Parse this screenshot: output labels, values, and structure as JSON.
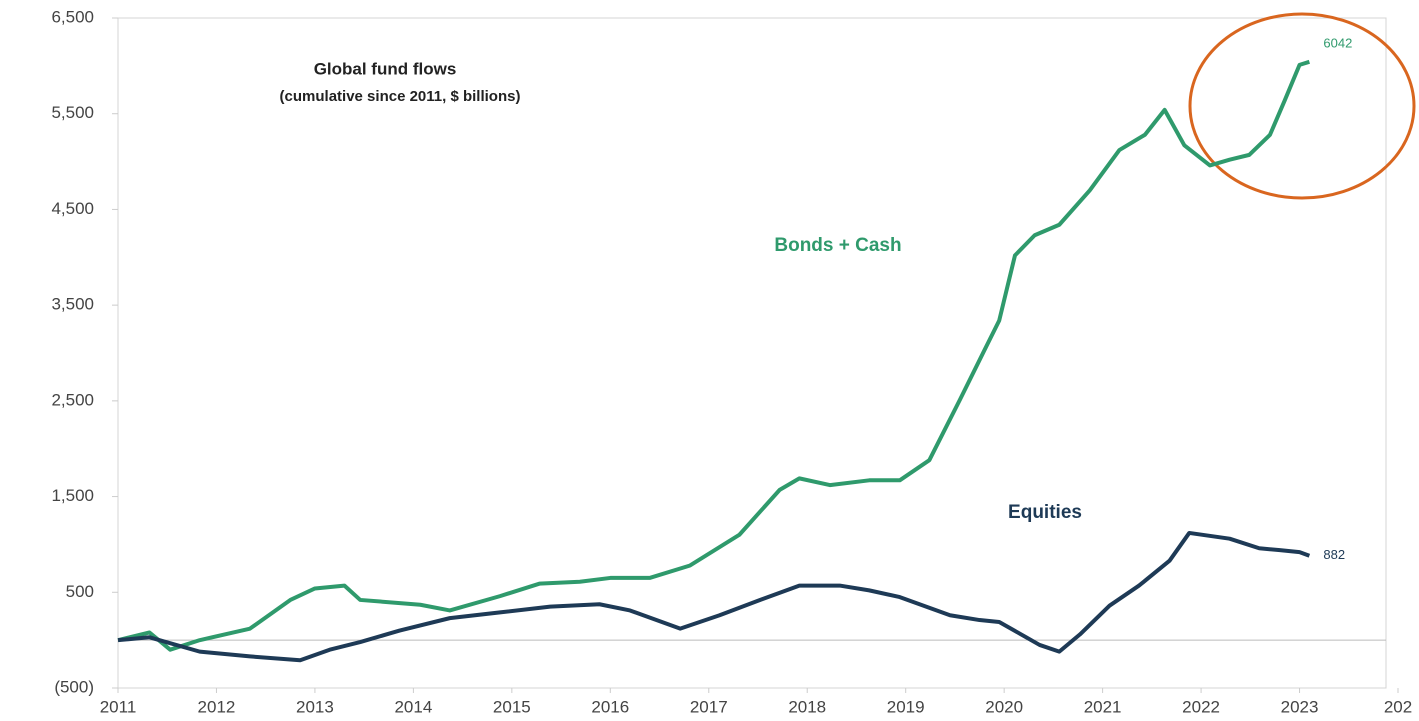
{
  "chart_data": {
    "type": "line",
    "title": "Global fund flows",
    "subtitle": "(cumulative since 2011, $ billions)",
    "xlim": [
      2011,
      2024
    ],
    "xticks": [
      2011,
      2012,
      2013,
      2014,
      2015,
      2016,
      2017,
      2018,
      2019,
      2020,
      2021,
      2022,
      2023,
      {
        "value": 2024,
        "label": "202"
      }
    ],
    "ylim": [
      -500,
      6500
    ],
    "yticks": [
      {
        "value": -500,
        "label": "(500)"
      },
      500,
      {
        "value": 1500,
        "label": "1,500"
      },
      {
        "value": 2500,
        "label": "2,500"
      },
      {
        "value": 3500,
        "label": "3,500"
      },
      {
        "value": 4500,
        "label": "4,500"
      },
      {
        "value": 5500,
        "label": "5,500"
      },
      {
        "value": 6500,
        "label": "6,500"
      }
    ],
    "series": [
      {
        "name": "Bonds + Cash",
        "color": "#2f9a6c",
        "x": [
          2011.0,
          2011.32,
          2011.53,
          2011.83,
          2012.34,
          2012.75,
          2013.0,
          2013.3,
          2013.46,
          2014.07,
          2014.37,
          2014.88,
          2015.28,
          2015.69,
          2016.0,
          2016.4,
          2016.81,
          2017.31,
          2017.72,
          2017.92,
          2018.23,
          2018.63,
          2018.94,
          2019.24,
          2019.55,
          2019.8,
          2019.95,
          2020.11,
          2020.31,
          2020.56,
          2020.87,
          2021.17,
          2021.43,
          2021.63,
          2021.83,
          2022.09,
          2022.29,
          2022.49,
          2022.7,
          2022.85,
          2023.0,
          2023.1
        ],
        "values": [
          0,
          80,
          -100,
          0,
          120,
          420,
          540,
          570,
          420,
          370,
          310,
          460,
          590,
          610,
          650,
          650,
          780,
          1100,
          1570,
          1690,
          1620,
          1670,
          1670,
          1880,
          2510,
          3030,
          3340,
          4020,
          4230,
          4340,
          4700,
          5120,
          5280,
          5540,
          5170,
          4960,
          5020,
          5070,
          5280,
          5640,
          6010,
          6042
        ]
      },
      {
        "name": "Equities",
        "color": "#1e3a56",
        "x": [
          2011.0,
          2011.32,
          2011.83,
          2012.34,
          2012.85,
          2013.15,
          2013.46,
          2013.86,
          2014.37,
          2014.88,
          2015.39,
          2015.89,
          2016.2,
          2016.71,
          2017.11,
          2017.52,
          2017.92,
          2018.33,
          2018.63,
          2018.94,
          2019.45,
          2019.75,
          2019.95,
          2020.36,
          2020.56,
          2020.77,
          2021.07,
          2021.37,
          2021.68,
          2021.88,
          2022.29,
          2022.59,
          2022.8,
          2023.0,
          2023.1
        ],
        "values": [
          0,
          30,
          -120,
          -170,
          -210,
          -100,
          -20,
          100,
          230,
          290,
          350,
          375,
          310,
          120,
          260,
          420,
          570,
          570,
          520,
          450,
          260,
          210,
          190,
          -50,
          -120,
          60,
          360,
          570,
          830,
          1120,
          1060,
          960,
          940,
          920,
          882
        ]
      }
    ]
  }
}
